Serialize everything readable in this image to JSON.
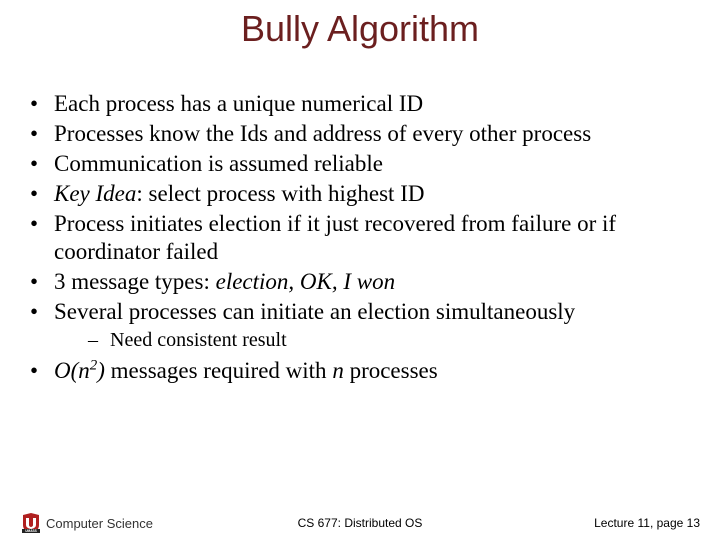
{
  "title": "Bully Algorithm",
  "title_color": "#6b1f1f",
  "title_fontsize": 36,
  "body_fontsize": 23,
  "sub_fontsize": 20,
  "background_color": "#ffffff",
  "text_color": "#000000",
  "bullets": [
    {
      "html": "Each process has a unique numerical ID"
    },
    {
      "html": "Processes know the Ids and address of every other process"
    },
    {
      "html": "Communication is assumed reliable"
    },
    {
      "html": "<span class=\"italic\">Key Idea</span>: select process with highest ID"
    },
    {
      "html": "Process initiates election if it just recovered from failure or if coordinator failed"
    },
    {
      "html": "3 message types: <span class=\"italic\">election, OK, I won</span>"
    },
    {
      "html": "Several processes can initiate an election simultaneously",
      "sub": [
        "Need consistent result"
      ]
    },
    {
      "html": "<span class=\"italic\">O(n<sup>2</sup>)</span> messages required with <span class=\"italic\">n</span> processes"
    }
  ],
  "footer": {
    "left": "Computer Science",
    "center": "CS 677: Distributed OS",
    "right": "Lecture 11, page 13",
    "logo_colors": {
      "red": "#b02020",
      "dark": "#222222",
      "white": "#ffffff"
    }
  }
}
